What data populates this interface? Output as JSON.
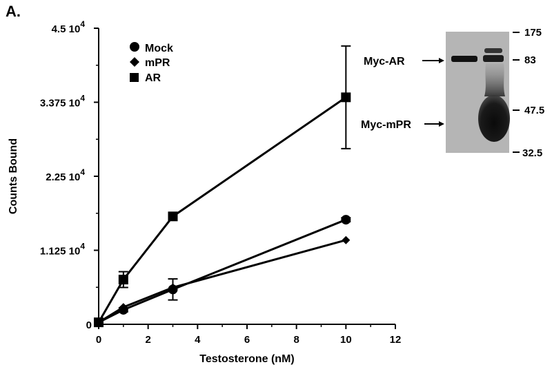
{
  "panel_label": "A.",
  "chart_data": {
    "type": "line",
    "title": "",
    "xlabel": "Testosterone (nM)",
    "ylabel": "Counts Bound",
    "xlim": [
      0,
      12
    ],
    "ylim": [
      0,
      45000
    ],
    "x_ticks": [
      "0",
      "2",
      "4",
      "6",
      "8",
      "10",
      "12"
    ],
    "y_ticks": [
      {
        "value": 0,
        "base": "0",
        "exp": ""
      },
      {
        "value": 11250,
        "base": "1.125 10",
        "exp": "4"
      },
      {
        "value": 22500,
        "base": "2.25 10",
        "exp": "4"
      },
      {
        "value": 33750,
        "base": "3.375 10",
        "exp": "4"
      },
      {
        "value": 45000,
        "base": "4.5 10",
        "exp": "4"
      }
    ],
    "legend_position": "top-left",
    "series": [
      {
        "name": "Mock",
        "marker": "circle",
        "points": [
          {
            "x": 0,
            "y": 300,
            "err": 0
          },
          {
            "x": 1,
            "y": 2200,
            "err": 300
          },
          {
            "x": 3,
            "y": 5300,
            "err": 1600
          },
          {
            "x": 10,
            "y": 15900,
            "err": 300
          }
        ]
      },
      {
        "name": "mPR",
        "marker": "diamond",
        "points": [
          {
            "x": 0,
            "y": 300,
            "err": 0
          },
          {
            "x": 1,
            "y": 2600,
            "err": 0
          },
          {
            "x": 3,
            "y": 5600,
            "err": 0
          },
          {
            "x": 10,
            "y": 12800,
            "err": 0
          }
        ]
      },
      {
        "name": "AR",
        "marker": "square",
        "points": [
          {
            "x": 0,
            "y": 300,
            "err": 0
          },
          {
            "x": 1,
            "y": 6800,
            "err": 1200
          },
          {
            "x": 3,
            "y": 16400,
            "err": 0
          },
          {
            "x": 10,
            "y": 34500,
            "err": 7800
          }
        ]
      }
    ]
  },
  "blot": {
    "lane_labels": [
      "Myc-AR",
      "Myc-mPR"
    ],
    "markers": [
      "175",
      "83",
      "47.5",
      "32.5"
    ]
  },
  "colors": {
    "ink": "#000000",
    "blot_bg": "#b5b5b5",
    "band": "#111111"
  }
}
